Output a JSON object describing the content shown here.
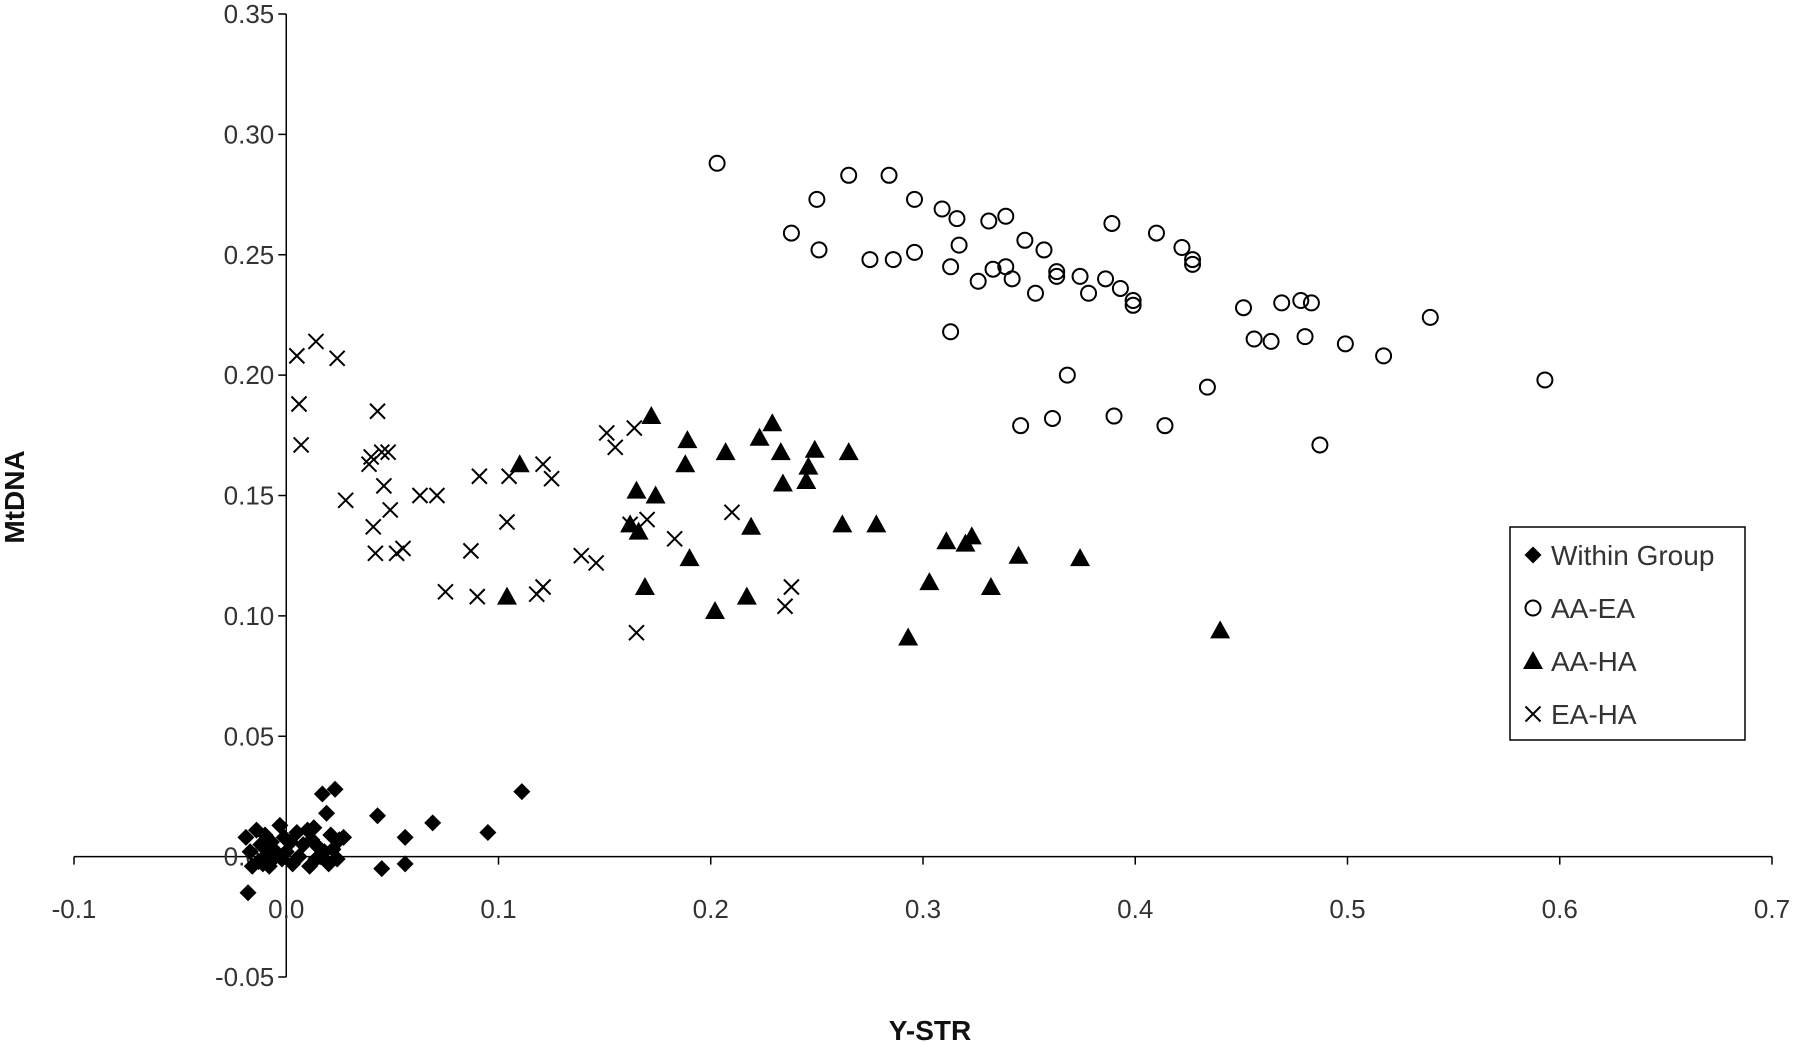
{
  "chart_data": {
    "type": "scatter",
    "title": "",
    "xlabel": "Y-STR",
    "ylabel": "MtDNA",
    "xlim": [
      -0.1,
      0.7
    ],
    "ylim": [
      -0.05,
      0.35
    ],
    "x_ticks": [
      -0.1,
      0.0,
      0.1,
      0.2,
      0.3,
      0.4,
      0.5,
      0.6,
      0.7
    ],
    "x_tick_labels": [
      "-0.1",
      "0.0",
      "0.1",
      "0.2",
      "0.3",
      "0.4",
      "0.5",
      "0.6",
      "0.7"
    ],
    "y_ticks": [
      -0.05,
      0.0,
      0.05,
      0.1,
      0.15,
      0.2,
      0.25,
      0.3,
      0.35
    ],
    "y_tick_labels": [
      "-0.05",
      "0.00",
      "0.05",
      "0.10",
      "0.15",
      "0.20",
      "0.25",
      "0.30",
      "0.35"
    ],
    "grid": false,
    "legend_position": "right",
    "series": [
      {
        "name": "Within Group",
        "marker": "diamond",
        "points": [
          [
            -0.019,
            0.008
          ],
          [
            -0.017,
            0.002
          ],
          [
            -0.016,
            -0.004
          ],
          [
            -0.018,
            -0.015
          ],
          [
            -0.014,
            0.011
          ],
          [
            -0.013,
            -0.002
          ],
          [
            -0.012,
            0.005
          ],
          [
            -0.011,
            -0.003
          ],
          [
            -0.01,
            0.009
          ],
          [
            -0.009,
            0.001
          ],
          [
            -0.008,
            -0.004
          ],
          [
            -0.007,
            0.006
          ],
          [
            -0.006,
            0.003
          ],
          [
            -0.005,
            0.0
          ],
          [
            -0.003,
            0.013
          ],
          [
            -0.002,
            -0.001
          ],
          [
            -0.001,
            0.008
          ],
          [
            0.0,
            0.002
          ],
          [
            0.002,
            0.006
          ],
          [
            0.003,
            -0.003
          ],
          [
            0.005,
            0.01
          ],
          [
            0.006,
            0.0
          ],
          [
            0.008,
            0.005
          ],
          [
            0.01,
            0.011
          ],
          [
            0.011,
            -0.004
          ],
          [
            0.012,
            0.007
          ],
          [
            0.013,
            0.012
          ],
          [
            0.014,
            -0.001
          ],
          [
            0.015,
            0.004
          ],
          [
            0.016,
            0.0
          ],
          [
            0.017,
            0.026
          ],
          [
            0.018,
            0.002
          ],
          [
            0.019,
            0.018
          ],
          [
            0.02,
            -0.003
          ],
          [
            0.021,
            0.009
          ],
          [
            0.022,
            0.003
          ],
          [
            0.023,
            0.028
          ],
          [
            0.024,
            -0.001
          ],
          [
            0.025,
            0.007
          ],
          [
            0.027,
            0.008
          ],
          [
            0.043,
            0.017
          ],
          [
            0.045,
            -0.005
          ],
          [
            0.056,
            0.008
          ],
          [
            0.056,
            -0.003
          ],
          [
            0.069,
            0.014
          ],
          [
            0.095,
            0.01
          ],
          [
            0.111,
            0.027
          ]
        ]
      },
      {
        "name": "AA-EA",
        "marker": "circle",
        "points": [
          [
            0.203,
            0.288
          ],
          [
            0.238,
            0.259
          ],
          [
            0.25,
            0.273
          ],
          [
            0.251,
            0.252
          ],
          [
            0.265,
            0.283
          ],
          [
            0.275,
            0.248
          ],
          [
            0.284,
            0.283
          ],
          [
            0.286,
            0.248
          ],
          [
            0.296,
            0.273
          ],
          [
            0.296,
            0.251
          ],
          [
            0.309,
            0.269
          ],
          [
            0.313,
            0.245
          ],
          [
            0.313,
            0.218
          ],
          [
            0.316,
            0.265
          ],
          [
            0.317,
            0.254
          ],
          [
            0.326,
            0.239
          ],
          [
            0.331,
            0.264
          ],
          [
            0.333,
            0.244
          ],
          [
            0.339,
            0.266
          ],
          [
            0.339,
            0.245
          ],
          [
            0.342,
            0.24
          ],
          [
            0.346,
            0.179
          ],
          [
            0.348,
            0.256
          ],
          [
            0.353,
            0.234
          ],
          [
            0.357,
            0.252
          ],
          [
            0.361,
            0.182
          ],
          [
            0.363,
            0.243
          ],
          [
            0.363,
            0.241
          ],
          [
            0.368,
            0.2
          ],
          [
            0.374,
            0.241
          ],
          [
            0.378,
            0.234
          ],
          [
            0.386,
            0.24
          ],
          [
            0.389,
            0.263
          ],
          [
            0.39,
            0.183
          ],
          [
            0.393,
            0.236
          ],
          [
            0.399,
            0.231
          ],
          [
            0.399,
            0.229
          ],
          [
            0.41,
            0.259
          ],
          [
            0.414,
            0.179
          ],
          [
            0.422,
            0.253
          ],
          [
            0.427,
            0.248
          ],
          [
            0.427,
            0.246
          ],
          [
            0.434,
            0.195
          ],
          [
            0.451,
            0.228
          ],
          [
            0.456,
            0.215
          ],
          [
            0.464,
            0.214
          ],
          [
            0.469,
            0.23
          ],
          [
            0.478,
            0.231
          ],
          [
            0.48,
            0.216
          ],
          [
            0.483,
            0.23
          ],
          [
            0.487,
            0.171
          ],
          [
            0.499,
            0.213
          ],
          [
            0.517,
            0.208
          ],
          [
            0.539,
            0.224
          ],
          [
            0.593,
            0.198
          ]
        ]
      },
      {
        "name": "AA-HA",
        "marker": "triangle",
        "points": [
          [
            0.104,
            0.108
          ],
          [
            0.11,
            0.163
          ],
          [
            0.162,
            0.138
          ],
          [
            0.165,
            0.152
          ],
          [
            0.166,
            0.135
          ],
          [
            0.169,
            0.112
          ],
          [
            0.172,
            0.183
          ],
          [
            0.174,
            0.15
          ],
          [
            0.188,
            0.163
          ],
          [
            0.189,
            0.173
          ],
          [
            0.19,
            0.124
          ],
          [
            0.202,
            0.102
          ],
          [
            0.207,
            0.168
          ],
          [
            0.217,
            0.108
          ],
          [
            0.219,
            0.137
          ],
          [
            0.223,
            0.174
          ],
          [
            0.229,
            0.18
          ],
          [
            0.233,
            0.168
          ],
          [
            0.234,
            0.155
          ],
          [
            0.245,
            0.156
          ],
          [
            0.246,
            0.162
          ],
          [
            0.249,
            0.169
          ],
          [
            0.262,
            0.138
          ],
          [
            0.265,
            0.168
          ],
          [
            0.278,
            0.138
          ],
          [
            0.293,
            0.091
          ],
          [
            0.303,
            0.114
          ],
          [
            0.311,
            0.131
          ],
          [
            0.32,
            0.13
          ],
          [
            0.323,
            0.133
          ],
          [
            0.332,
            0.112
          ],
          [
            0.345,
            0.125
          ],
          [
            0.374,
            0.124
          ],
          [
            0.44,
            0.094
          ]
        ]
      },
      {
        "name": "EA-HA",
        "marker": "x",
        "points": [
          [
            0.005,
            0.208
          ],
          [
            0.006,
            0.188
          ],
          [
            0.007,
            0.171
          ],
          [
            0.014,
            0.214
          ],
          [
            0.024,
            0.207
          ],
          [
            0.028,
            0.148
          ],
          [
            0.039,
            0.163
          ],
          [
            0.04,
            0.166
          ],
          [
            0.041,
            0.137
          ],
          [
            0.042,
            0.126
          ],
          [
            0.043,
            0.185
          ],
          [
            0.045,
            0.168
          ],
          [
            0.046,
            0.154
          ],
          [
            0.048,
            0.168
          ],
          [
            0.049,
            0.144
          ],
          [
            0.052,
            0.126
          ],
          [
            0.055,
            0.128
          ],
          [
            0.063,
            0.15
          ],
          [
            0.071,
            0.15
          ],
          [
            0.075,
            0.11
          ],
          [
            0.087,
            0.127
          ],
          [
            0.09,
            0.108
          ],
          [
            0.091,
            0.158
          ],
          [
            0.104,
            0.139
          ],
          [
            0.105,
            0.158
          ],
          [
            0.118,
            0.109
          ],
          [
            0.121,
            0.112
          ],
          [
            0.121,
            0.163
          ],
          [
            0.125,
            0.157
          ],
          [
            0.139,
            0.125
          ],
          [
            0.146,
            0.122
          ],
          [
            0.151,
            0.176
          ],
          [
            0.155,
            0.17
          ],
          [
            0.162,
            0.138
          ],
          [
            0.164,
            0.178
          ],
          [
            0.165,
            0.093
          ],
          [
            0.17,
            0.14
          ],
          [
            0.183,
            0.132
          ],
          [
            0.21,
            0.143
          ],
          [
            0.235,
            0.104
          ],
          [
            0.238,
            0.112
          ]
        ]
      }
    ]
  }
}
